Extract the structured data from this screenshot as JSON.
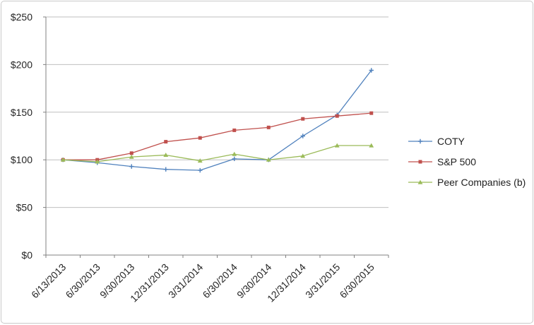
{
  "chart_data": {
    "type": "line",
    "title": "",
    "categories": [
      "6/13/2013",
      "6/30/2013",
      "9/30/2013",
      "12/31/2013",
      "3/31/2014",
      "6/30/2014",
      "9/30/2014",
      "12/31/2014",
      "3/31/2015",
      "6/30/2015"
    ],
    "series": [
      {
        "name": "COTY",
        "color": "#4F81BD",
        "marker": "plus",
        "values": [
          100,
          97,
          93,
          90,
          89,
          101,
          100,
          125,
          147,
          194
        ]
      },
      {
        "name": "S&P 500",
        "color": "#C0504D",
        "marker": "square",
        "values": [
          100,
          100,
          107,
          119,
          123,
          131,
          134,
          143,
          146,
          149
        ]
      },
      {
        "name": "Peer Companies (b)",
        "color": "#9BBB59",
        "marker": "triangle",
        "values": [
          100,
          98,
          103,
          105,
          99,
          106,
          100,
          104,
          115,
          115
        ]
      }
    ],
    "ylim": [
      0,
      250
    ],
    "y_tick_step": 50,
    "y_tick_labels": [
      "$0",
      "$50",
      "$100",
      "$150",
      "$200",
      "$250"
    ],
    "grid": true,
    "x_label_rotation": -45,
    "legend_position": "right"
  },
  "colors": {
    "gridline": "#BFBFBF",
    "axis": "#808080",
    "tick_text": "#262626",
    "frame_border": "#C9C9C9",
    "background": "#FFFFFF"
  }
}
